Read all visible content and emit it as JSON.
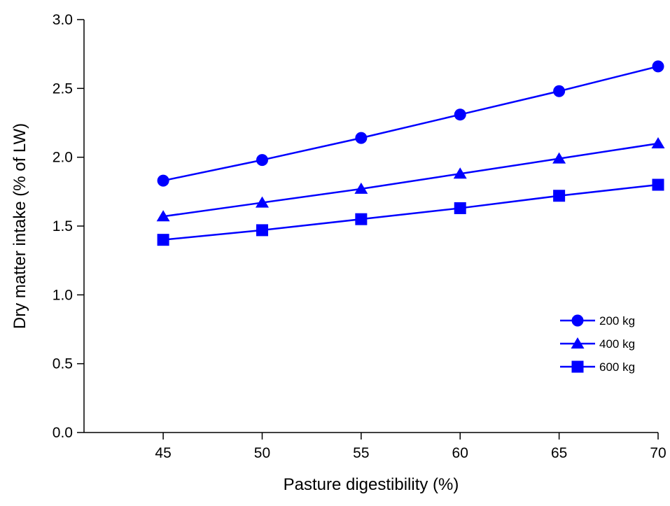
{
  "chart_data": {
    "type": "line",
    "x_label": "Pasture digestibility (%)",
    "y_label": "Dry matter intake (% of LW)",
    "x": [
      45,
      50,
      55,
      60,
      65,
      70
    ],
    "series": [
      {
        "name": "200 kg",
        "color": "#0000ff",
        "marker": "circle",
        "values": [
          1.83,
          1.98,
          2.14,
          2.31,
          2.48,
          2.66
        ]
      },
      {
        "name": "400 kg",
        "color": "#0000ff",
        "marker": "triangle",
        "values": [
          1.57,
          1.67,
          1.77,
          1.88,
          1.99,
          2.1
        ]
      },
      {
        "name": "600 kg",
        "color": "#0000ff",
        "marker": "square",
        "values": [
          1.4,
          1.47,
          1.55,
          1.63,
          1.72,
          1.8
        ]
      }
    ],
    "xlim": [
      41,
      70
    ],
    "xticks": [
      45,
      50,
      55,
      60,
      65,
      70
    ],
    "ylim": [
      0,
      3
    ],
    "yticks": [
      {
        "value": 0,
        "label": "0.0"
      },
      {
        "value": 0.5,
        "label": "0.5"
      },
      {
        "value": 1,
        "label": "1.0"
      },
      {
        "value": 1.5,
        "label": "1.5"
      },
      {
        "value": 2,
        "label": "2.0"
      },
      {
        "value": 2.5,
        "label": "2.5"
      },
      {
        "value": 3,
        "label": "3.0"
      }
    ],
    "grid": false,
    "legend": "lower right"
  }
}
